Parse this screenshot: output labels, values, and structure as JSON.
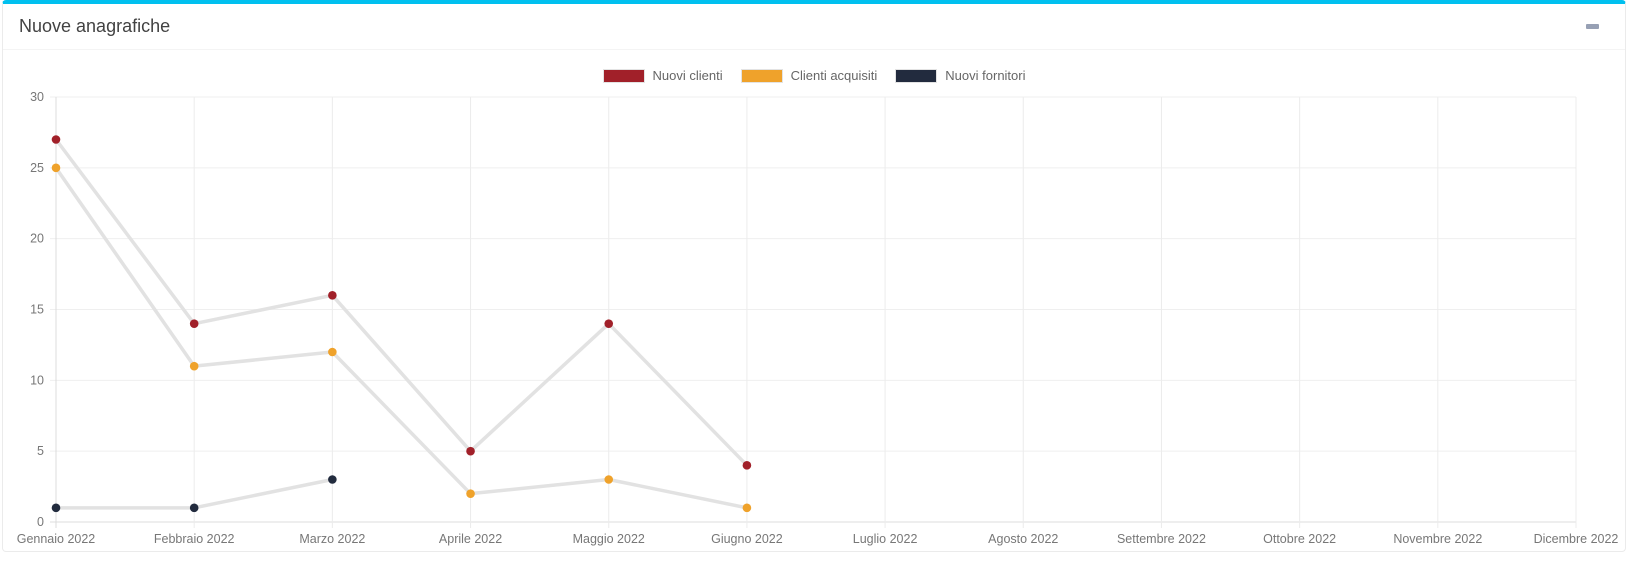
{
  "card": {
    "title": "Nuove anagrafiche",
    "accent_color": "#00c0ef",
    "collapse_icon": "minus-icon"
  },
  "chart_data": {
    "type": "line",
    "title": "Nuove anagrafiche",
    "categories": [
      "Gennaio 2022",
      "Febbraio 2022",
      "Marzo 2022",
      "Aprile 2022",
      "Maggio 2022",
      "Giugno 2022",
      "Luglio 2022",
      "Agosto 2022",
      "Settembre 2022",
      "Ottobre 2022",
      "Novembre 2022",
      "Dicembre 2022"
    ],
    "series": [
      {
        "name": "Nuovi clienti",
        "color": "#a12029",
        "values": [
          27,
          14,
          16,
          5,
          14,
          4,
          null,
          null,
          null,
          null,
          null,
          null
        ]
      },
      {
        "name": "Clienti acquisiti",
        "color": "#efa22b",
        "values": [
          25,
          11,
          12,
          2,
          3,
          1,
          null,
          null,
          null,
          null,
          null,
          null
        ]
      },
      {
        "name": "Nuovi fornitori",
        "color": "#222b3e",
        "values": [
          1,
          1,
          3,
          null,
          null,
          null,
          null,
          null,
          null,
          null,
          null,
          null
        ]
      }
    ],
    "xlabel": "",
    "ylabel": "",
    "ylim": [
      0,
      30
    ],
    "yticks": [
      0,
      5,
      10,
      15,
      20,
      25,
      30
    ],
    "grid": true,
    "legend_position": "top",
    "line_color": "#e2e2e2",
    "grid_color": "#efefef",
    "axis_color": "#dcdcdc",
    "tick_label_color": "#777777"
  }
}
